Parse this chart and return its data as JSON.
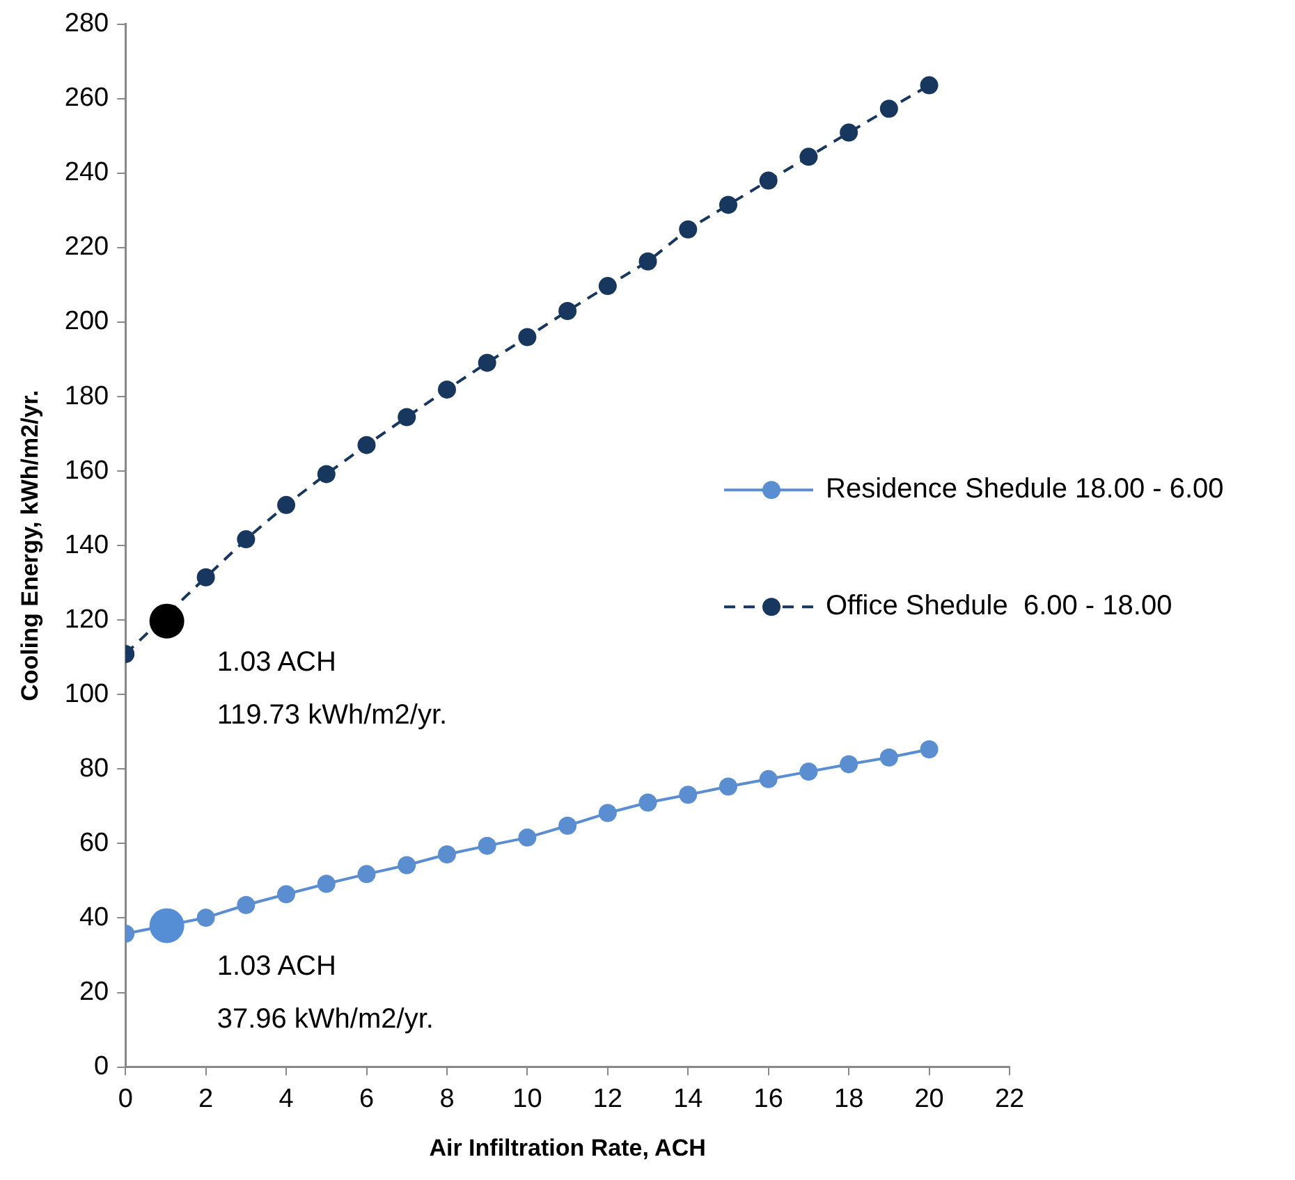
{
  "chart_data": {
    "type": "line",
    "xlabel": "Air Infiltration Rate, ACH",
    "ylabel": "Cooling Energy, kWh/m2/yr.",
    "xlim": [
      0,
      22
    ],
    "xticks": [
      0,
      2,
      4,
      6,
      8,
      10,
      12,
      14,
      16,
      18,
      20,
      22
    ],
    "ylim": [
      0,
      280
    ],
    "yticks": [
      0,
      20,
      40,
      60,
      80,
      100,
      120,
      140,
      160,
      180,
      200,
      220,
      240,
      260,
      280
    ],
    "grid": false,
    "legend": "right",
    "marker": "circle",
    "series": [
      {
        "name": "Residence Shedule 18.00 - 6.00",
        "color": "#5a8ed0",
        "line_style": "solid",
        "x": [
          0,
          2,
          3,
          4,
          5,
          6,
          7,
          8,
          9,
          10,
          11,
          12,
          13,
          14,
          15,
          16,
          17,
          18,
          19,
          20
        ],
        "values": [
          35.8,
          40.1,
          43.5,
          46.4,
          49.2,
          51.8,
          54.2,
          57.1,
          59.4,
          61.6,
          64.8,
          68.2,
          71.0,
          73.1,
          75.3,
          77.3,
          79.3,
          81.3,
          83.1,
          85.3
        ]
      },
      {
        "name": "Office Shedule  6.00 - 18.00",
        "color": "#17375e",
        "line_style": "dashed",
        "x": [
          0,
          2,
          3,
          4,
          5,
          6,
          7,
          8,
          9,
          10,
          11,
          12,
          13,
          14,
          15,
          16,
          17,
          18,
          19,
          20
        ],
        "values": [
          110.9,
          131.5,
          141.7,
          150.9,
          159.2,
          167.0,
          174.5,
          181.9,
          189.1,
          196.0,
          203.0,
          209.7,
          216.3,
          224.9,
          231.5,
          238.0,
          244.4,
          250.9,
          257.3,
          263.6
        ]
      },
      {
        "type": "scatter",
        "color": "#000000",
        "x": [
          1.03
        ],
        "values": [
          119.73
        ]
      },
      {
        "type": "scatter",
        "color": "#558ed5",
        "x": [
          1.03
        ],
        "values": [
          37.96
        ]
      }
    ],
    "annotations": [
      "1.03 ACH",
      "119.73 kWh/m2/yr.",
      "1.03 ACH",
      "37.96 kWh/m2/yr."
    ]
  }
}
